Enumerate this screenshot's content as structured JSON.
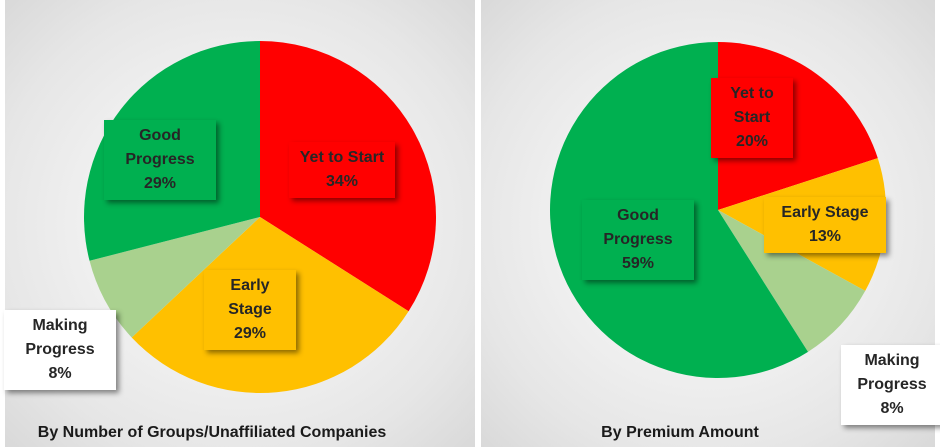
{
  "chart_data": [
    {
      "type": "pie",
      "title": "By Number of Groups/Unaffiliated Companies",
      "categories": [
        "Yet to Start",
        "Early Stage",
        "Making Progress",
        "Good Progress"
      ],
      "values": [
        34,
        29,
        8,
        29
      ],
      "value_labels": [
        "34%",
        "29%",
        "8%",
        "29%"
      ],
      "colors": [
        "#ff0000",
        "#ffc000",
        "#a9d18e",
        "#00b050"
      ]
    },
    {
      "type": "pie",
      "title": "By Premium Amount",
      "categories": [
        "Yet to Start",
        "Early Stage",
        "Making Progress",
        "Good Progress"
      ],
      "values": [
        20,
        13,
        8,
        59
      ],
      "value_labels": [
        "20%",
        "13%",
        "8%",
        "59%"
      ],
      "colors": [
        "#ff0000",
        "#ffc000",
        "#a9d18e",
        "#00b050"
      ]
    }
  ]
}
